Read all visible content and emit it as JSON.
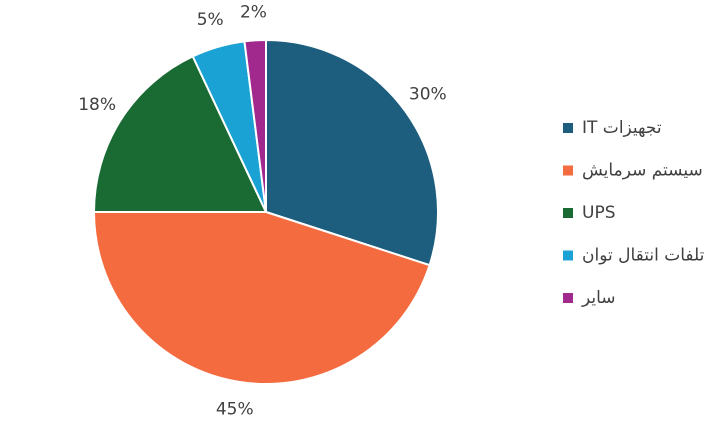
{
  "chart_data": {
    "type": "pie",
    "categories": [
      "تجهیزات IT",
      "سیستم سرمایش",
      "UPS",
      "تلفات انتقال توان",
      "سایر"
    ],
    "values": [
      30,
      45,
      18,
      5,
      2
    ],
    "value_labels": [
      "30%",
      "45%",
      "18%",
      "5%",
      "2%"
    ],
    "colors": [
      "#1d5e7e",
      "#f46b3f",
      "#1a6a34",
      "#1aa2d4",
      "#a1298e"
    ],
    "legend": "right"
  }
}
